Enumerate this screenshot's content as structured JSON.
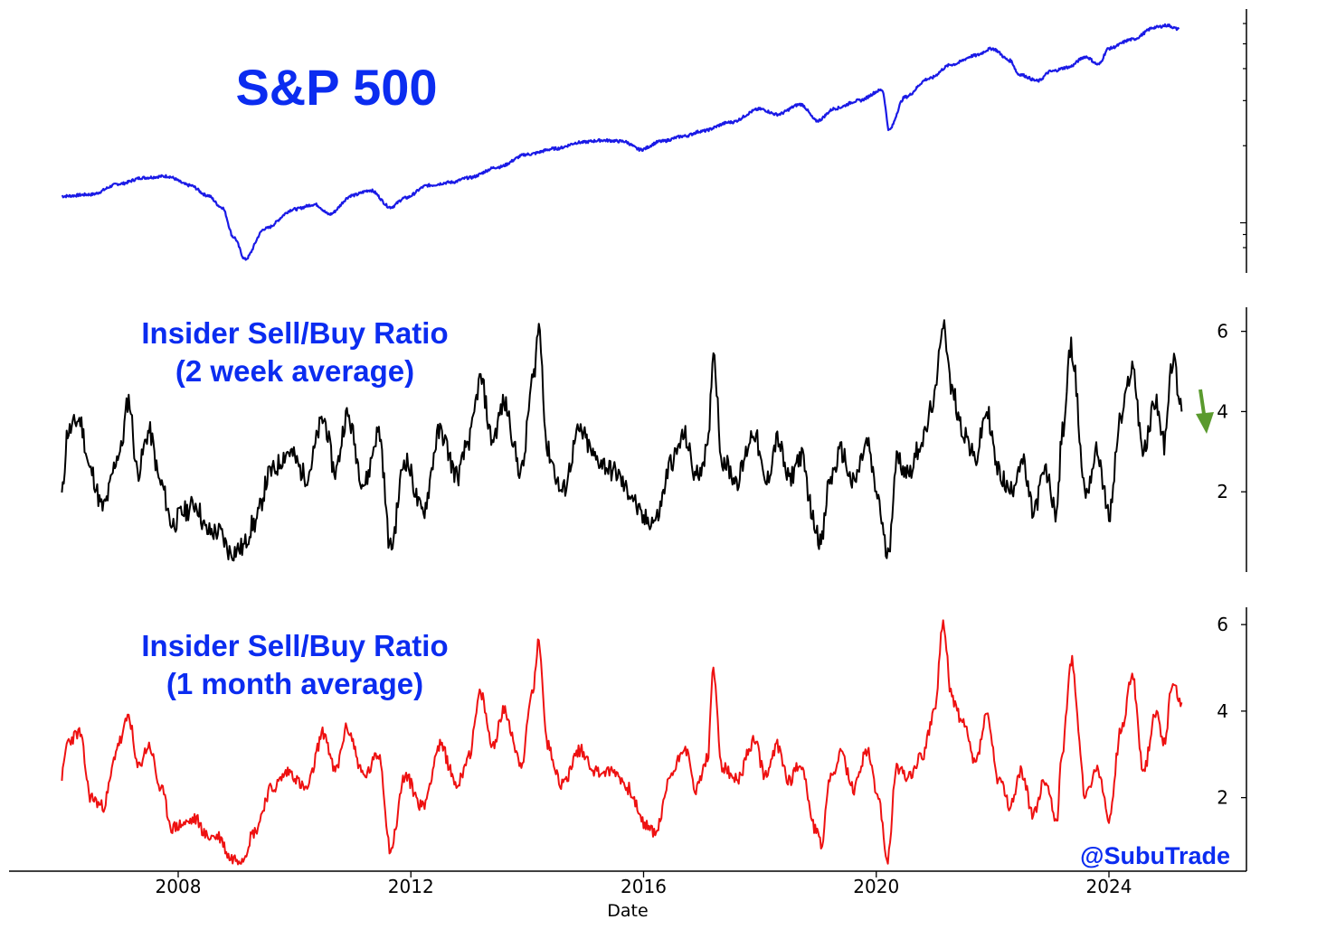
{
  "chart_data": [
    {
      "type": "line",
      "title": "S&P 500",
      "xlabel": "",
      "ylabel": "",
      "y_scale": "log",
      "y_tick_labels": [],
      "color": "#1a1ae6",
      "series": [
        {
          "values_x": [
            2006.0,
            2006.5,
            2007.0,
            2007.4,
            2007.8,
            2008.2,
            2008.5,
            2008.75,
            2008.95,
            2009.15,
            2009.5,
            2010.0,
            2010.35,
            2010.6,
            2011.0,
            2011.3,
            2011.65,
            2011.9,
            2012.3,
            2012.7,
            2013.0,
            2013.5,
            2014.0,
            2014.5,
            2014.9,
            2015.3,
            2015.65,
            2015.95,
            2016.3,
            2016.7,
            2017.0,
            2017.5,
            2018.0,
            2018.3,
            2018.7,
            2018.98,
            2019.3,
            2019.7,
            2020.1,
            2020.22,
            2020.5,
            2020.9,
            2021.3,
            2021.7,
            2021.99,
            2022.3,
            2022.45,
            2022.78,
            2023.0,
            2023.3,
            2023.6,
            2023.82,
            2024.0,
            2024.4,
            2024.8,
            2025.0,
            2025.2
          ],
          "values_y": [
            1270,
            1290,
            1420,
            1500,
            1520,
            1400,
            1280,
            1150,
            880,
            720,
            950,
            1130,
            1180,
            1080,
            1280,
            1340,
            1150,
            1250,
            1400,
            1440,
            1500,
            1650,
            1850,
            1950,
            2060,
            2100,
            2080,
            1930,
            2080,
            2180,
            2280,
            2470,
            2780,
            2650,
            2900,
            2500,
            2800,
            3000,
            3300,
            2300,
            3100,
            3650,
            4150,
            4500,
            4790,
            4300,
            3800,
            3580,
            3900,
            4050,
            4450,
            4150,
            4800,
            5200,
            5800,
            5900,
            5700
          ]
        }
      ]
    },
    {
      "type": "line",
      "title": "Insider Sell/Buy Ratio\n(2 week average)",
      "xlabel": "",
      "ylabel": "",
      "y_ticks": [
        2,
        4,
        6
      ],
      "ylim": [
        0,
        6.6
      ],
      "color": "#000000",
      "series": [
        {
          "values_x": [
            2006.0,
            2006.1,
            2006.3,
            2006.5,
            2006.7,
            2007.0,
            2007.15,
            2007.3,
            2007.5,
            2007.7,
            2007.9,
            2008.1,
            2008.3,
            2008.5,
            2008.7,
            2008.9,
            2009.1,
            2009.3,
            2009.6,
            2009.9,
            2010.2,
            2010.5,
            2010.7,
            2010.9,
            2011.2,
            2011.45,
            2011.65,
            2011.9,
            2012.2,
            2012.5,
            2012.8,
            2013.0,
            2013.2,
            2013.4,
            2013.6,
            2013.9,
            2014.1,
            2014.2,
            2014.35,
            2014.6,
            2014.9,
            2015.2,
            2015.5,
            2015.75,
            2016.0,
            2016.2,
            2016.5,
            2016.7,
            2016.9,
            2017.1,
            2017.2,
            2017.35,
            2017.6,
            2017.9,
            2018.1,
            2018.3,
            2018.5,
            2018.7,
            2018.95,
            2019.05,
            2019.2,
            2019.4,
            2019.6,
            2019.85,
            2020.0,
            2020.2,
            2020.35,
            2020.55,
            2020.8,
            2021.0,
            2021.15,
            2021.3,
            2021.5,
            2021.7,
            2021.9,
            2022.1,
            2022.3,
            2022.5,
            2022.7,
            2022.9,
            2023.1,
            2023.2,
            2023.35,
            2023.6,
            2023.8,
            2024.0,
            2024.2,
            2024.4,
            2024.6,
            2024.8,
            2024.95,
            2025.1,
            2025.25
          ],
          "values_y": [
            1.9,
            3.5,
            3.8,
            2.5,
            1.6,
            3.0,
            4.3,
            2.5,
            3.5,
            2.2,
            1.2,
            1.5,
            1.7,
            1.0,
            1.0,
            0.5,
            0.6,
            1.2,
            2.5,
            3.0,
            2.4,
            3.8,
            2.5,
            3.9,
            2.2,
            3.5,
            0.6,
            2.8,
            1.5,
            3.5,
            2.4,
            3.3,
            4.8,
            3.3,
            4.2,
            2.5,
            4.8,
            6.1,
            3.0,
            2.0,
            3.5,
            2.8,
            2.5,
            2.0,
            1.3,
            1.3,
            2.8,
            3.4,
            2.4,
            3.0,
            5.5,
            2.8,
            2.3,
            3.5,
            2.2,
            3.3,
            2.3,
            2.9,
            1.2,
            0.7,
            2.3,
            3.0,
            2.2,
            3.2,
            2.0,
            0.4,
            2.8,
            2.5,
            3.3,
            4.3,
            6.3,
            4.5,
            3.5,
            2.8,
            4.0,
            2.5,
            2.0,
            2.8,
            1.5,
            2.5,
            1.5,
            3.5,
            5.6,
            2.0,
            3.0,
            1.4,
            3.8,
            5.1,
            3.0,
            4.3,
            3.2,
            5.3,
            4.0
          ]
        }
      ],
      "annotations": [
        {
          "type": "arrow",
          "direction": "down",
          "color": "#5a9a2e"
        }
      ]
    },
    {
      "type": "line",
      "title": "Insider Sell/Buy Ratio\n(1 month average)",
      "xlabel": "Date",
      "ylabel": "",
      "x_ticks": [
        "2008",
        "2012",
        "2016",
        "2020",
        "2024"
      ],
      "y_ticks": [
        2,
        4,
        6
      ],
      "ylim": [
        0.3,
        6.4
      ],
      "color": "#ee1111",
      "series": [
        {
          "values_x": [
            2006.0,
            2006.1,
            2006.3,
            2006.5,
            2006.7,
            2007.0,
            2007.15,
            2007.3,
            2007.5,
            2007.7,
            2007.9,
            2008.1,
            2008.3,
            2008.5,
            2008.7,
            2008.9,
            2009.1,
            2009.3,
            2009.6,
            2009.9,
            2010.2,
            2010.5,
            2010.7,
            2010.9,
            2011.2,
            2011.45,
            2011.65,
            2011.9,
            2012.2,
            2012.5,
            2012.8,
            2013.0,
            2013.2,
            2013.4,
            2013.6,
            2013.9,
            2014.1,
            2014.2,
            2014.35,
            2014.6,
            2014.9,
            2015.2,
            2015.5,
            2015.75,
            2016.0,
            2016.2,
            2016.5,
            2016.7,
            2016.9,
            2017.1,
            2017.2,
            2017.35,
            2017.6,
            2017.9,
            2018.1,
            2018.3,
            2018.5,
            2018.7,
            2018.95,
            2019.05,
            2019.2,
            2019.4,
            2019.6,
            2019.85,
            2020.0,
            2020.2,
            2020.35,
            2020.55,
            2020.8,
            2021.0,
            2021.15,
            2021.3,
            2021.5,
            2021.7,
            2021.9,
            2022.1,
            2022.3,
            2022.5,
            2022.7,
            2022.9,
            2023.1,
            2023.2,
            2023.35,
            2023.6,
            2023.8,
            2024.0,
            2024.2,
            2024.4,
            2024.6,
            2024.8,
            2024.95,
            2025.1,
            2025.25
          ],
          "values_y": [
            2.5,
            3.3,
            3.5,
            2.0,
            1.8,
            3.3,
            3.9,
            2.7,
            3.2,
            2.2,
            1.3,
            1.4,
            1.5,
            1.1,
            1.1,
            0.6,
            0.6,
            1.2,
            2.2,
            2.6,
            2.2,
            3.5,
            2.6,
            3.6,
            2.5,
            3.0,
            0.8,
            2.5,
            1.8,
            3.2,
            2.3,
            3.0,
            4.4,
            3.2,
            4.0,
            2.8,
            4.5,
            5.6,
            3.2,
            2.3,
            3.1,
            2.6,
            2.6,
            2.2,
            1.4,
            1.2,
            2.6,
            3.2,
            2.2,
            2.9,
            4.9,
            2.7,
            2.4,
            3.3,
            2.5,
            3.2,
            2.4,
            2.8,
            1.3,
            0.9,
            2.4,
            3.0,
            2.2,
            3.1,
            2.2,
            0.6,
            2.7,
            2.5,
            3.0,
            4.0,
            6.0,
            4.3,
            3.7,
            2.8,
            3.9,
            2.4,
            1.8,
            2.6,
            1.6,
            2.4,
            1.5,
            3.1,
            5.2,
            2.0,
            2.7,
            1.5,
            3.5,
            4.8,
            2.6,
            4.0,
            3.3,
            4.7,
            4.2
          ]
        }
      ]
    }
  ],
  "watermark": "@SubuTrade"
}
